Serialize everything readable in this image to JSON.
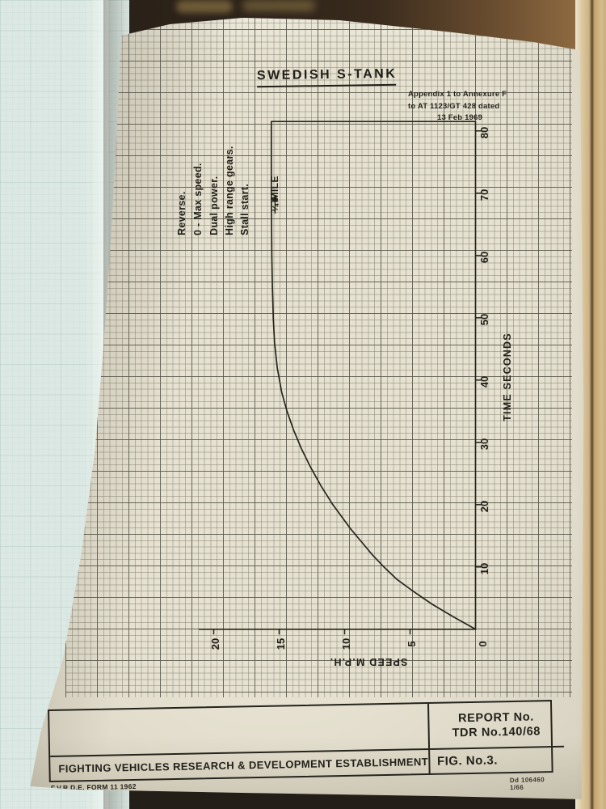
{
  "palette": {
    "table_background": "#2a2118",
    "facing_page_blue": "#dce8e4",
    "paper_cream": "#e6e1d0",
    "grid_heavy": "#565549",
    "grid_fine": "#8d8b7a",
    "ink": "#26251d",
    "page_edge_tan": "#cdb285"
  },
  "header": {
    "title": "SWEDISH S-TANK",
    "annotation_lines": [
      "Appendix 1 to Annexure F",
      "to AT 1123/GT 428 dated",
      "13 Feb 1969"
    ]
  },
  "test_conditions": [
    "Reverse.",
    "0 - Max speed.",
    "Dual power.",
    "High range gears.",
    "Stall start."
  ],
  "quarter_mile_label": "¼ MILE",
  "axes": {
    "time": {
      "label": "TIME SECONDS",
      "ticks": [
        10,
        20,
        30,
        40,
        50,
        60,
        70,
        80
      ]
    },
    "speed": {
      "label": "SPEED M.P.H.",
      "ticks": [
        0,
        5,
        10,
        15,
        20
      ]
    }
  },
  "footer": {
    "report_label": "REPORT No.",
    "report_value": "TDR No.140/68",
    "establishment": "FIGHTING VEHICLES RESEARCH & DEVELOPMENT ESTABLISHMENT",
    "figure": "FIG. No.3.",
    "form_code": "F.V.R.D.E. FORM 11 1962",
    "print_code": "Dd 106460 1/66"
  },
  "chart_data": {
    "type": "line",
    "title": "SWEDISH S-TANK",
    "xlabel": "TIME SECONDS",
    "ylabel": "SPEED M.P.H.",
    "x_range": [
      0,
      81.5
    ],
    "y_range": [
      0,
      20
    ],
    "grid": true,
    "orientation": "rotated 90deg on page: time axis runs vertically, speed axis horizontal reversed",
    "series": [
      {
        "name": "Acceleration from stall start, dual power, high range gears",
        "x": [
          0,
          2,
          4,
          6,
          8,
          10,
          12,
          14,
          16,
          18,
          20,
          23,
          26,
          29,
          32,
          35,
          38,
          42,
          46,
          50,
          55,
          60,
          65,
          70,
          75,
          81.5
        ],
        "y": [
          0,
          1.7,
          3.3,
          4.7,
          6.0,
          7.0,
          7.9,
          8.7,
          9.5,
          10.2,
          10.9,
          11.8,
          12.6,
          13.3,
          13.9,
          14.4,
          14.8,
          15.15,
          15.35,
          15.45,
          15.52,
          15.56,
          15.58,
          15.6,
          15.6,
          15.6
        ]
      }
    ],
    "max_speed_mph": 15.6,
    "annotations": [
      {
        "label": "¼ MILE",
        "time_s": 68.5
      },
      {
        "label": "Reverse. 0 - Max speed. Dual power. High range gears. Stall start."
      }
    ]
  }
}
